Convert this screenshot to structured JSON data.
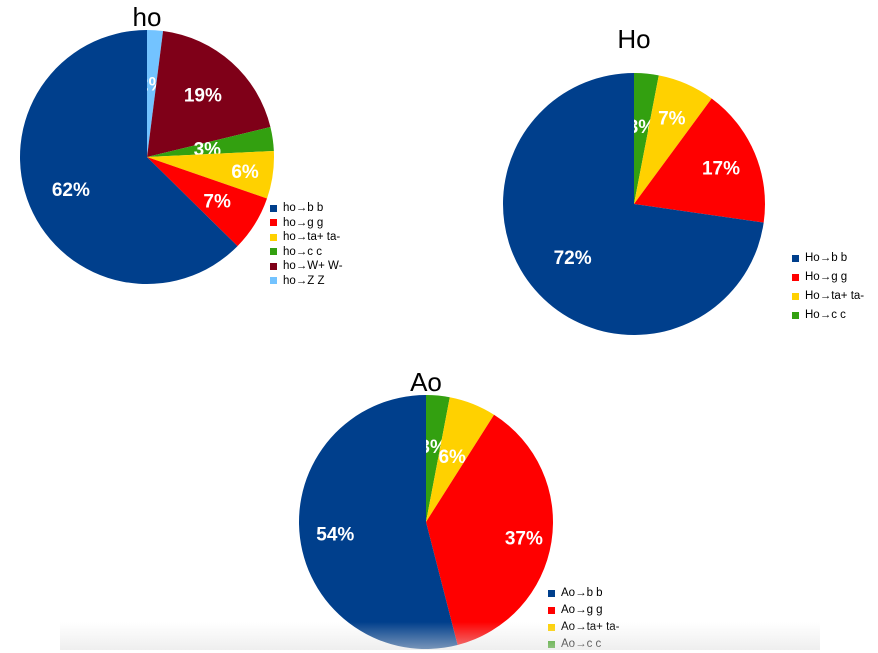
{
  "chart_data": [
    {
      "type": "pie",
      "title": "ho",
      "slices": [
        {
          "label": "ho→b b",
          "value": 62,
          "text": "62%",
          "color": "#003f8c"
        },
        {
          "label": "ho→g g",
          "value": 7,
          "text": "7%",
          "color": "#ff0000"
        },
        {
          "label": "ho→ta+ ta-",
          "value": 6,
          "text": "6%",
          "color": "#ffd100"
        },
        {
          "label": "ho→c c",
          "value": 3,
          "text": "3%",
          "color": "#33a010"
        },
        {
          "label": "ho→W+ W-",
          "value": 19,
          "text": "19%",
          "color": "#7f0018"
        },
        {
          "label": "ho→Z Z",
          "value": 2,
          "text": "2%",
          "color": "#73c3ff"
        }
      ],
      "legend_position": "right"
    },
    {
      "type": "pie",
      "title": "Ho",
      "slices": [
        {
          "label": "Ho→b b",
          "value": 72,
          "text": "72%",
          "color": "#003f8c"
        },
        {
          "label": "Ho→g g",
          "value": 17,
          "text": "17%",
          "color": "#ff0000"
        },
        {
          "label": "Ho→ta+ ta-",
          "value": 7,
          "text": "7%",
          "color": "#ffd100"
        },
        {
          "label": "Ho→c c",
          "value": 3,
          "text": "3%",
          "color": "#33a010"
        }
      ],
      "legend_position": "right"
    },
    {
      "type": "pie",
      "title": "Ao",
      "slices": [
        {
          "label": "Ao→b b",
          "value": 54,
          "text": "54%",
          "color": "#003f8c"
        },
        {
          "label": "Ao→g g",
          "value": 37,
          "text": "37%",
          "color": "#ff0000"
        },
        {
          "label": "Ao→ta+ ta-",
          "value": 6,
          "text": "6%",
          "color": "#ffd100"
        },
        {
          "label": "Ao→c c",
          "value": 3,
          "text": "3%",
          "color": "#33a010"
        }
      ],
      "legend_position": "right"
    }
  ]
}
